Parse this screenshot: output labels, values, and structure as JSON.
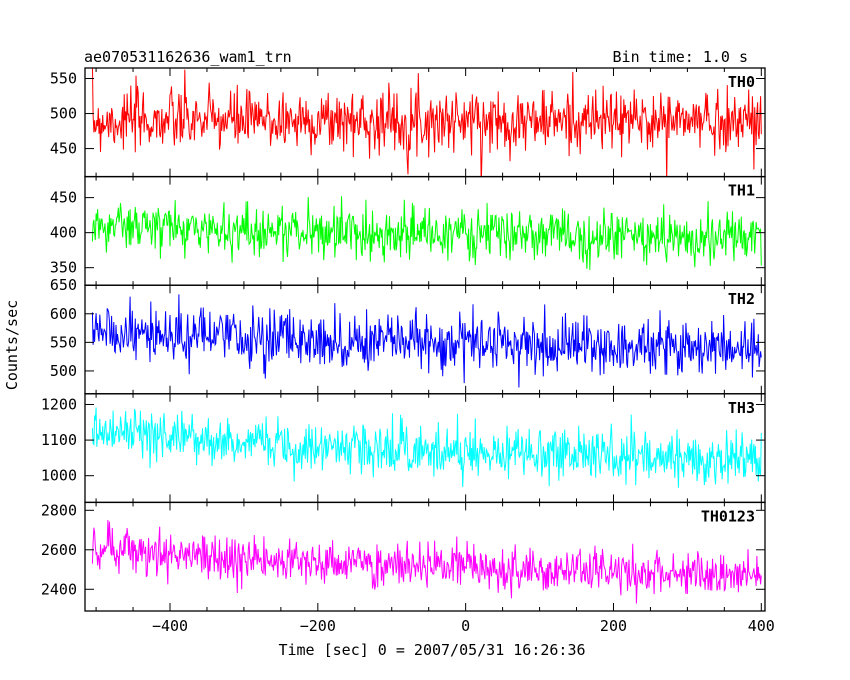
{
  "header": {
    "title": "ae070531162636_wam1_trn",
    "bin_time": "Bin time: 1.0 s"
  },
  "chart_data": {
    "type": "line",
    "xlabel": "Time [sec] 0 = 2007/05/31 16:26:36",
    "ylabel": "Counts/sec",
    "xlim": [
      -515,
      405
    ],
    "x_ticks": [
      -400,
      -200,
      0,
      200,
      400
    ],
    "x_tick_labels": [
      "−400",
      "−200",
      "0",
      "200",
      "400"
    ],
    "x_range": [
      -505,
      400
    ],
    "bin_time": 1.0,
    "panels": [
      {
        "name": "TH0",
        "color": "#ff0000",
        "ylim": [
          410,
          565
        ],
        "y_ticks": [
          450,
          500,
          550
        ],
        "y_tick_labels": [
          "450",
          "500",
          "550"
        ],
        "start_level": 490,
        "end_level": 490,
        "noise": 22
      },
      {
        "name": "TH1",
        "color": "#00ff00",
        "ylim": [
          325,
          480
        ],
        "y_ticks": [
          350,
          400,
          450
        ],
        "y_tick_labels": [
          "350",
          "400",
          "450"
        ],
        "start_level": 412,
        "end_level": 392,
        "noise": 18
      },
      {
        "name": "TH2",
        "color": "#0000ff",
        "ylim": [
          460,
          650
        ],
        "y_ticks": [
          500,
          550,
          600,
          650
        ],
        "y_tick_labels": [
          "500",
          "550",
          "600",
          "650"
        ],
        "start_level": 570,
        "end_level": 540,
        "noise": 24
      },
      {
        "name": "TH3",
        "color": "#00ffff",
        "ylim": [
          925,
          1230
        ],
        "y_ticks": [
          1000,
          1100,
          1200
        ],
        "y_tick_labels": [
          "1000",
          "1100",
          "1200"
        ],
        "start_level": 1130,
        "end_level": 1045,
        "noise": 35
      },
      {
        "name": "TH0123",
        "color": "#ff00ff",
        "ylim": [
          2290,
          2840
        ],
        "y_ticks": [
          2400,
          2600,
          2800
        ],
        "y_tick_labels": [
          "2400",
          "2600",
          "2800"
        ],
        "start_level": 2620,
        "end_level": 2460,
        "noise": 55
      }
    ]
  }
}
